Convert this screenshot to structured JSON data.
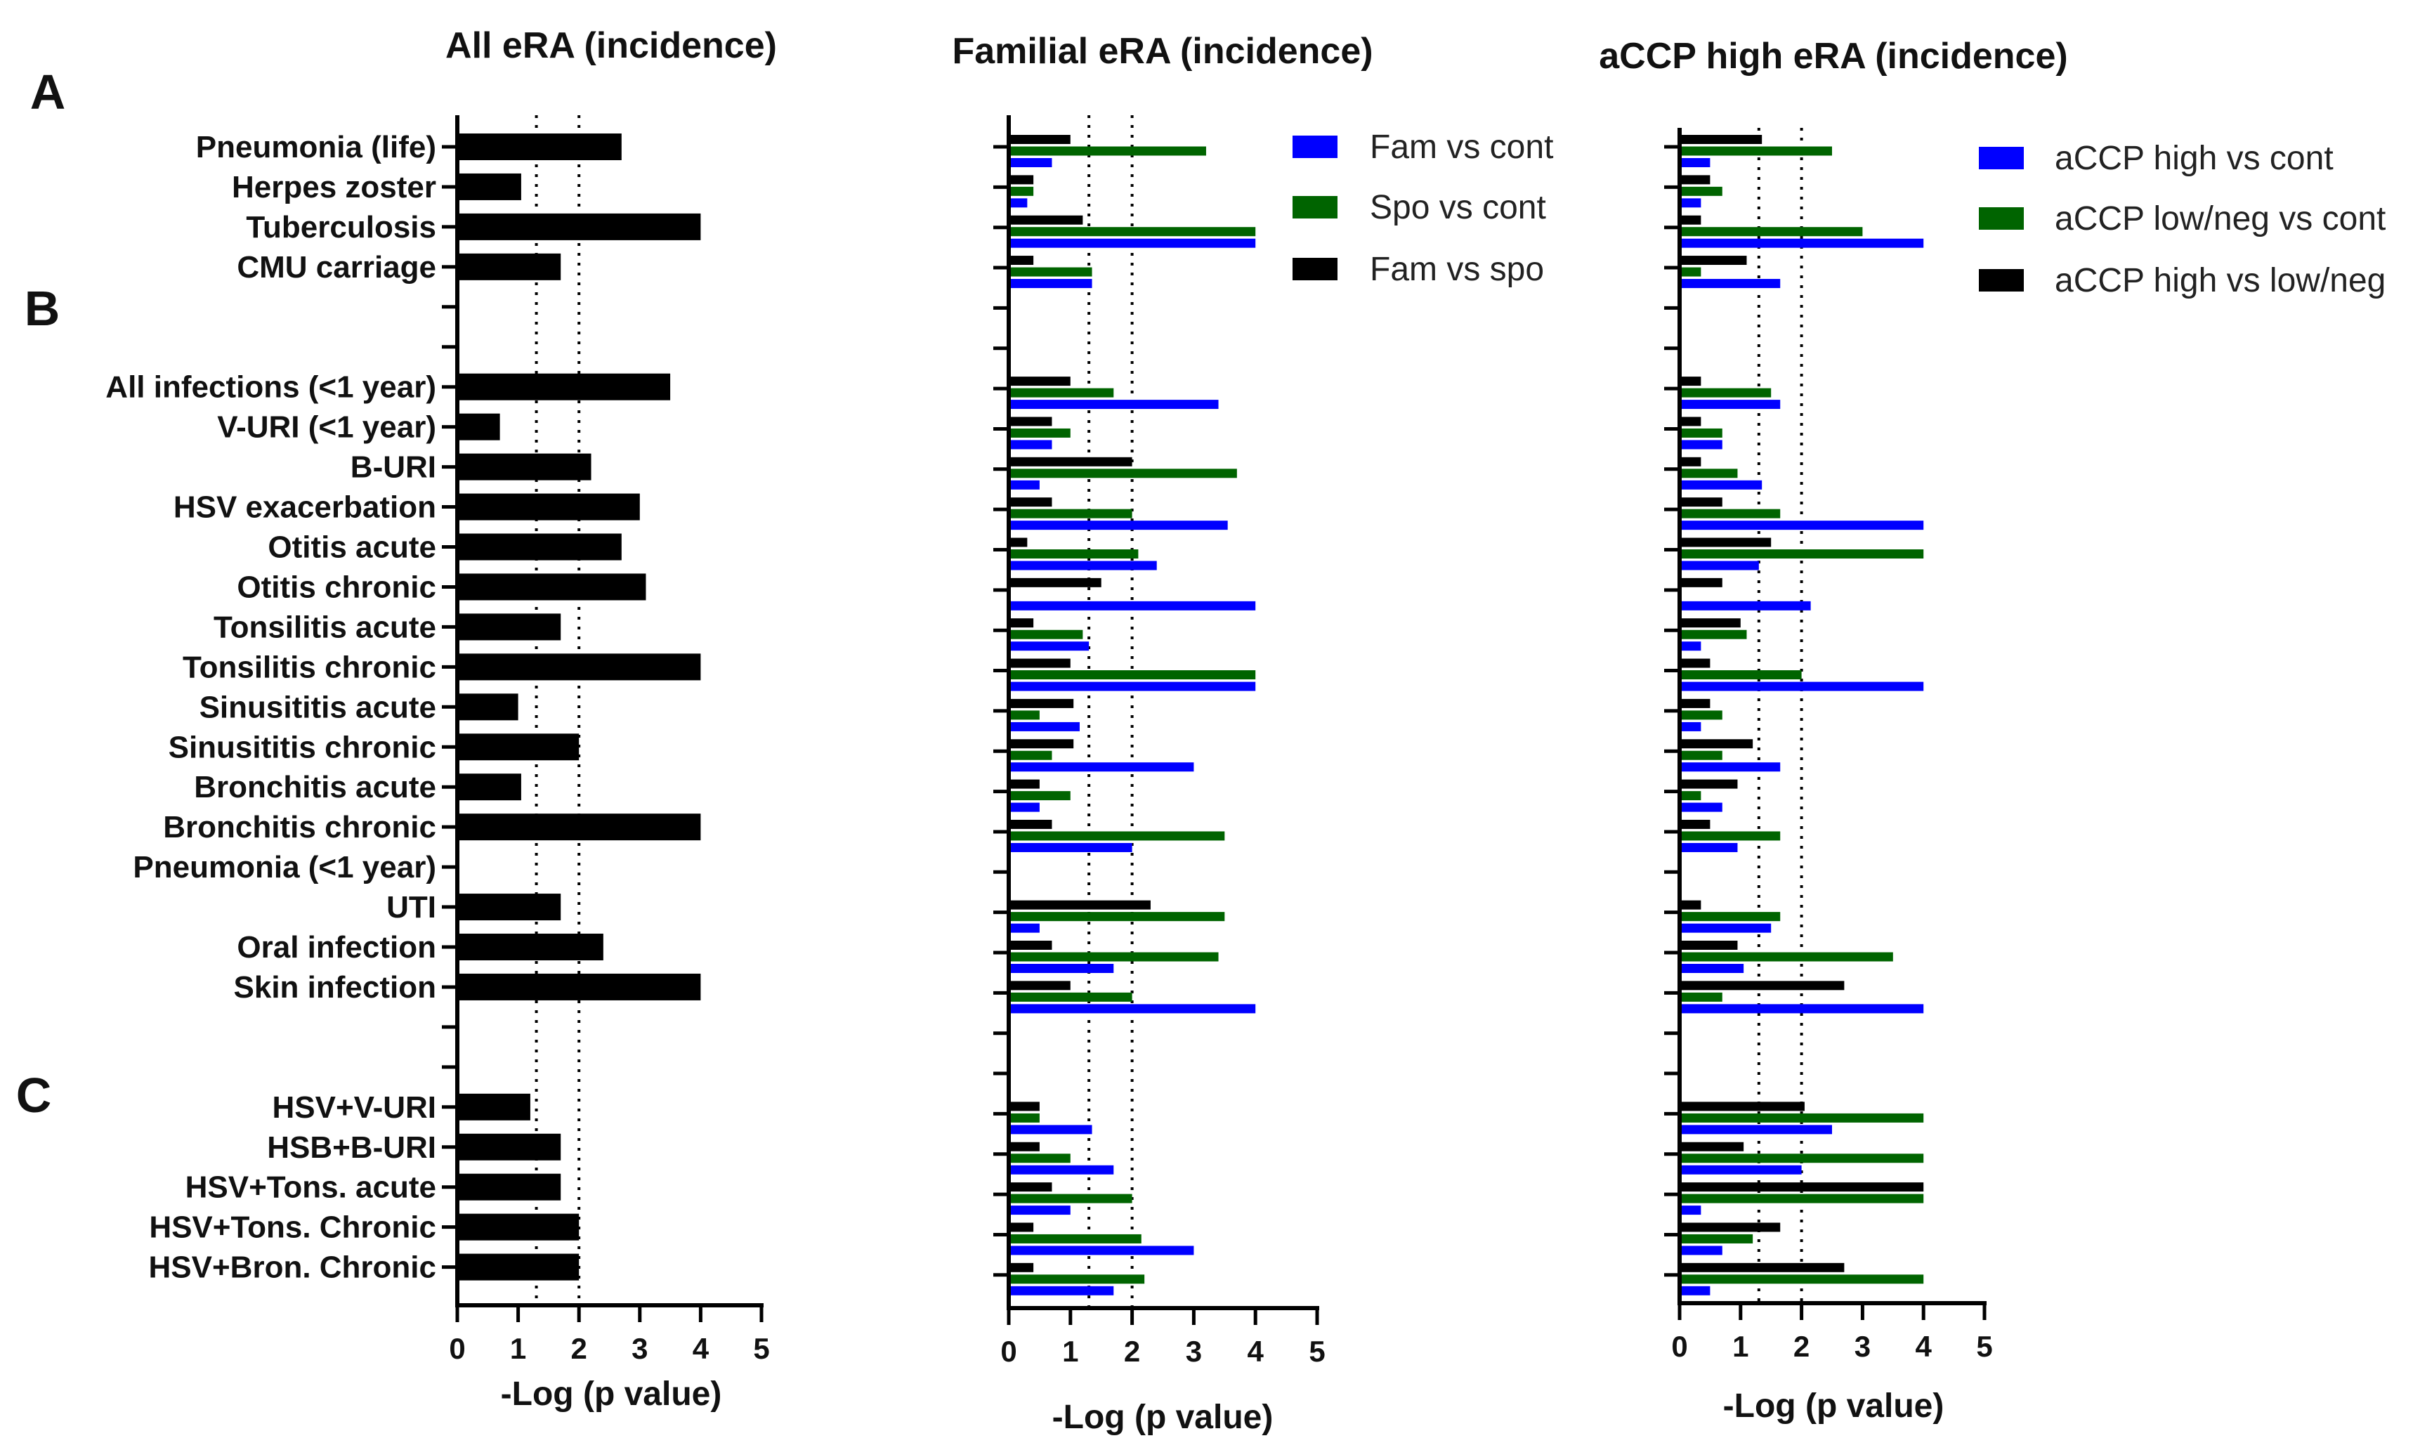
{
  "section_labels": [
    "A",
    "B",
    "C"
  ],
  "colors": {
    "blue": "#0000ff",
    "green": "#006400",
    "black": "#000000",
    "axis": "#000000"
  },
  "chart_data": [
    {
      "type": "bar",
      "orientation": "horizontal",
      "title": "All eRA (incidence)",
      "xlabel": "-Log (p value)",
      "xlim": [
        0,
        5
      ],
      "xticks": [
        "0",
        "1",
        "2",
        "3",
        "4",
        "5"
      ],
      "reference_lines": [
        1.3,
        2
      ],
      "categories": [
        "Pneumonia (life)",
        "Herpes zoster",
        "Tuberculosis",
        "CMU carriage",
        "",
        "",
        "All infections (<1 year)",
        "V-URI (<1 year)",
        "B-URI",
        "HSV exacerbation",
        "Otitis acute",
        "Otitis chronic",
        "Tonsilitis acute",
        "Tonsilitis chronic",
        "Sinusititis acute",
        "Sinusititis chronic",
        "Bronchitis acute",
        "Bronchitis chronic",
        "Pneumonia (<1 year)",
        "UTI",
        "Oral infection",
        "Skin infection",
        "",
        "",
        "HSV+V-URI",
        "HSB+B-URI",
        "HSV+Tons. acute",
        "HSV+Tons. Chronic",
        "HSV+Bron. Chronic"
      ],
      "series": [
        {
          "name": "All eRA",
          "color": "black",
          "values": [
            2.7,
            1.05,
            4.0,
            1.7,
            null,
            null,
            3.5,
            0.7,
            2.2,
            3.0,
            2.7,
            3.1,
            1.7,
            4.0,
            1.0,
            2.0,
            1.05,
            4.0,
            0,
            1.7,
            2.4,
            4.0,
            null,
            null,
            1.2,
            1.7,
            1.7,
            2.0,
            2.0
          ]
        }
      ]
    },
    {
      "type": "bar",
      "orientation": "horizontal",
      "title": "Familial eRA (incidence)",
      "xlabel": "-Log (p value)",
      "xlim": [
        0,
        5
      ],
      "xticks": [
        "0",
        "1",
        "2",
        "3",
        "4",
        "5"
      ],
      "reference_lines": [
        1.3,
        2
      ],
      "legend": [
        "Fam vs cont",
        "Spo vs cont",
        "Fam vs spo"
      ],
      "series": [
        {
          "name": "Fam vs spo",
          "color": "black",
          "values": [
            1.0,
            0.4,
            1.2,
            0.4,
            null,
            null,
            1.0,
            0.7,
            2.0,
            0.7,
            0.3,
            1.5,
            0.4,
            1.0,
            1.05,
            1.05,
            0.5,
            0.7,
            0,
            2.3,
            0.7,
            1.0,
            null,
            null,
            0.5,
            0.5,
            0.7,
            0.4,
            0.4
          ]
        },
        {
          "name": "Spo vs cont",
          "color": "green",
          "values": [
            3.2,
            0.4,
            4.0,
            1.35,
            null,
            null,
            1.7,
            1.0,
            3.7,
            2.0,
            2.1,
            0,
            1.2,
            4.0,
            0.5,
            0.7,
            1.0,
            3.5,
            0,
            3.5,
            3.4,
            2.0,
            null,
            null,
            0.5,
            1.0,
            2.0,
            2.15,
            2.2
          ]
        },
        {
          "name": "Fam vs cont",
          "color": "blue",
          "values": [
            0.7,
            0.3,
            4.0,
            1.35,
            null,
            null,
            3.4,
            0.7,
            0.5,
            3.55,
            2.4,
            4.0,
            1.3,
            4.0,
            1.15,
            3.0,
            0.5,
            2.0,
            0,
            0.5,
            1.7,
            4.0,
            null,
            null,
            1.35,
            1.7,
            1.0,
            3.0,
            1.7
          ]
        }
      ]
    },
    {
      "type": "bar",
      "orientation": "horizontal",
      "title": "aCCP high eRA (incidence)",
      "xlabel": "-Log (p value)",
      "xlim": [
        0,
        5
      ],
      "xticks": [
        "0",
        "1",
        "2",
        "3",
        "4",
        "5"
      ],
      "reference_lines": [
        1.3,
        2
      ],
      "legend": [
        "aCCP high vs cont",
        "aCCP low/neg vs cont",
        "aCCP high vs low/neg"
      ],
      "series": [
        {
          "name": "aCCP high vs low/neg",
          "color": "black",
          "values": [
            1.35,
            0.5,
            0.35,
            1.1,
            null,
            null,
            0.35,
            0.35,
            0.35,
            0.7,
            1.5,
            0.7,
            1.0,
            0.5,
            0.5,
            1.2,
            0.95,
            0.5,
            0,
            0.35,
            0.95,
            2.7,
            null,
            null,
            2.05,
            1.05,
            4.0,
            1.65,
            2.7
          ]
        },
        {
          "name": "aCCP low/neg vs cont",
          "color": "green",
          "values": [
            2.5,
            0.7,
            3.0,
            0.35,
            null,
            null,
            1.5,
            0.7,
            0.95,
            1.65,
            4.0,
            0,
            1.1,
            2.0,
            0.7,
            0.7,
            0.35,
            1.65,
            0,
            1.65,
            3.5,
            0.7,
            null,
            null,
            4.0,
            4.0,
            4.0,
            1.2,
            4.0
          ]
        },
        {
          "name": "aCCP high vs cont",
          "color": "blue",
          "values": [
            0.5,
            0.35,
            4.0,
            1.65,
            null,
            null,
            1.65,
            0.7,
            1.35,
            4.0,
            1.3,
            2.15,
            0.35,
            4.0,
            0.35,
            1.65,
            0.7,
            0.95,
            0,
            1.5,
            1.05,
            4.0,
            null,
            null,
            2.5,
            2.0,
            0.35,
            0.7,
            0.5
          ]
        }
      ]
    }
  ]
}
